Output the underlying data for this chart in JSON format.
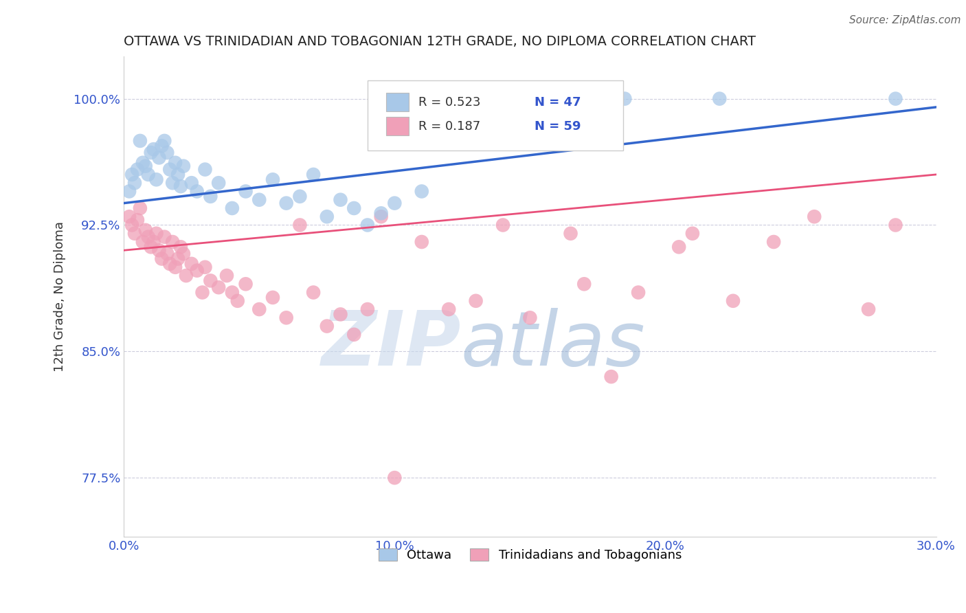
{
  "title": "OTTAWA VS TRINIDADIAN AND TOBAGONIAN 12TH GRADE, NO DIPLOMA CORRELATION CHART",
  "source": "Source: ZipAtlas.com",
  "xlabel_vals": [
    0.0,
    10.0,
    20.0,
    30.0
  ],
  "ylabel_vals": [
    77.5,
    85.0,
    92.5,
    100.0
  ],
  "xmin": 0.0,
  "xmax": 30.0,
  "ymin": 74.0,
  "ymax": 102.5,
  "ylabel": "12th Grade, No Diploma",
  "watermark_ZIP": "ZIP",
  "watermark_atlas": "atlas",
  "legend_R1": "R = 0.523",
  "legend_N1": "N = 47",
  "legend_R2": "R = 0.187",
  "legend_N2": "N = 59",
  "legend_label1": "Ottawa",
  "legend_label2": "Trinidadians and Tobagonians",
  "blue_color": "#A8C8E8",
  "pink_color": "#F0A0B8",
  "blue_line_color": "#3366CC",
  "pink_line_color": "#E8507A",
  "blue_scatter": [
    [
      0.2,
      94.5
    ],
    [
      0.3,
      95.5
    ],
    [
      0.4,
      95.0
    ],
    [
      0.5,
      95.8
    ],
    [
      0.6,
      97.5
    ],
    [
      0.7,
      96.2
    ],
    [
      0.8,
      96.0
    ],
    [
      0.9,
      95.5
    ],
    [
      1.0,
      96.8
    ],
    [
      1.1,
      97.0
    ],
    [
      1.2,
      95.2
    ],
    [
      1.3,
      96.5
    ],
    [
      1.4,
      97.2
    ],
    [
      1.5,
      97.5
    ],
    [
      1.6,
      96.8
    ],
    [
      1.7,
      95.8
    ],
    [
      1.8,
      95.0
    ],
    [
      1.9,
      96.2
    ],
    [
      2.0,
      95.5
    ],
    [
      2.1,
      94.8
    ],
    [
      2.2,
      96.0
    ],
    [
      2.5,
      95.0
    ],
    [
      2.7,
      94.5
    ],
    [
      3.0,
      95.8
    ],
    [
      3.2,
      94.2
    ],
    [
      3.5,
      95.0
    ],
    [
      4.0,
      93.5
    ],
    [
      4.5,
      94.5
    ],
    [
      5.0,
      94.0
    ],
    [
      5.5,
      95.2
    ],
    [
      6.0,
      93.8
    ],
    [
      6.5,
      94.2
    ],
    [
      7.0,
      95.5
    ],
    [
      7.5,
      93.0
    ],
    [
      8.0,
      94.0
    ],
    [
      8.5,
      93.5
    ],
    [
      9.0,
      92.5
    ],
    [
      9.5,
      93.2
    ],
    [
      10.0,
      93.8
    ],
    [
      11.0,
      94.5
    ],
    [
      14.0,
      100.0
    ],
    [
      14.5,
      100.0
    ],
    [
      15.0,
      100.0
    ],
    [
      17.0,
      100.0
    ],
    [
      18.5,
      100.0
    ],
    [
      22.0,
      100.0
    ],
    [
      28.5,
      100.0
    ]
  ],
  "pink_scatter": [
    [
      0.2,
      93.0
    ],
    [
      0.3,
      92.5
    ],
    [
      0.4,
      92.0
    ],
    [
      0.5,
      92.8
    ],
    [
      0.6,
      93.5
    ],
    [
      0.7,
      91.5
    ],
    [
      0.8,
      92.2
    ],
    [
      0.9,
      91.8
    ],
    [
      1.0,
      91.2
    ],
    [
      1.1,
      91.5
    ],
    [
      1.2,
      92.0
    ],
    [
      1.3,
      91.0
    ],
    [
      1.4,
      90.5
    ],
    [
      1.5,
      91.8
    ],
    [
      1.6,
      90.8
    ],
    [
      1.7,
      90.2
    ],
    [
      1.8,
      91.5
    ],
    [
      1.9,
      90.0
    ],
    [
      2.0,
      90.5
    ],
    [
      2.1,
      91.2
    ],
    [
      2.2,
      90.8
    ],
    [
      2.3,
      89.5
    ],
    [
      2.5,
      90.2
    ],
    [
      2.7,
      89.8
    ],
    [
      2.9,
      88.5
    ],
    [
      3.0,
      90.0
    ],
    [
      3.2,
      89.2
    ],
    [
      3.5,
      88.8
    ],
    [
      3.8,
      89.5
    ],
    [
      4.0,
      88.5
    ],
    [
      4.2,
      88.0
    ],
    [
      4.5,
      89.0
    ],
    [
      5.0,
      87.5
    ],
    [
      5.5,
      88.2
    ],
    [
      6.0,
      87.0
    ],
    [
      6.5,
      92.5
    ],
    [
      7.0,
      88.5
    ],
    [
      7.5,
      86.5
    ],
    [
      8.0,
      87.2
    ],
    [
      8.5,
      86.0
    ],
    [
      9.0,
      87.5
    ],
    [
      9.5,
      93.0
    ],
    [
      10.0,
      77.5
    ],
    [
      11.0,
      91.5
    ],
    [
      12.0,
      87.5
    ],
    [
      13.0,
      88.0
    ],
    [
      14.0,
      92.5
    ],
    [
      15.0,
      87.0
    ],
    [
      16.5,
      92.0
    ],
    [
      17.0,
      89.0
    ],
    [
      18.0,
      83.5
    ],
    [
      19.0,
      88.5
    ],
    [
      20.5,
      91.2
    ],
    [
      21.0,
      92.0
    ],
    [
      22.5,
      88.0
    ],
    [
      24.0,
      91.5
    ],
    [
      25.5,
      93.0
    ],
    [
      27.5,
      87.5
    ],
    [
      28.5,
      92.5
    ]
  ]
}
